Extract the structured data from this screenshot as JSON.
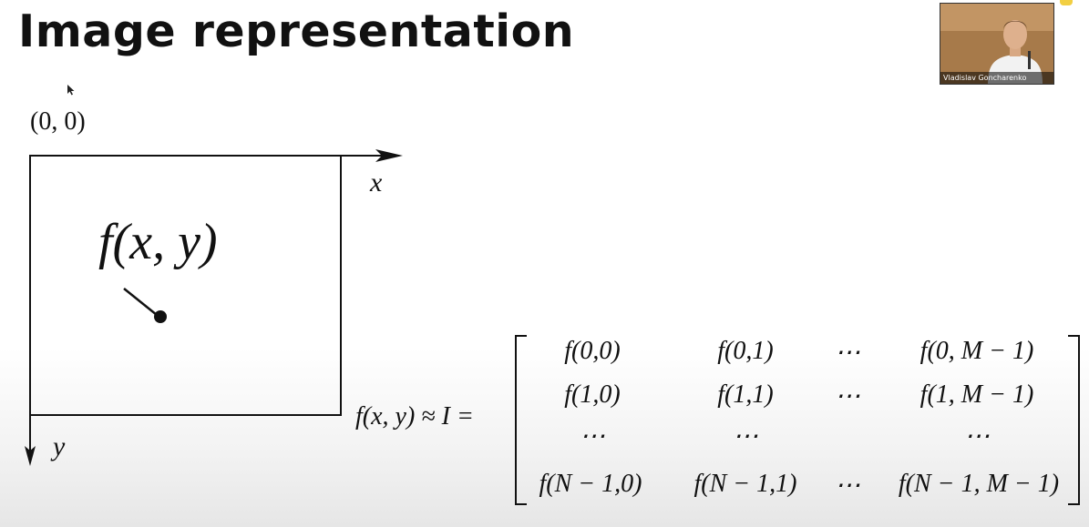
{
  "slide": {
    "title": "Image representation"
  },
  "webcam": {
    "speaker_name": "Vladislav Goncharenko"
  },
  "diagram": {
    "origin_label": "(0, 0)",
    "x_axis_label": "x",
    "y_axis_label": "y",
    "function_label": "f(x, y)"
  },
  "formula": {
    "lhs": "f(x, y) ≈ I =",
    "matrix": [
      [
        "f(0,0)",
        "f(0,1)",
        "⋯",
        "f(0, M − 1)"
      ],
      [
        "f(1,0)",
        "f(1,1)",
        "⋯",
        "f(1, M − 1)"
      ],
      [
        "⋯",
        "⋯",
        "",
        "⋯"
      ],
      [
        "f(N − 1,0)",
        "f(N − 1,1)",
        "⋯",
        "f(N − 1, M − 1)"
      ]
    ]
  }
}
